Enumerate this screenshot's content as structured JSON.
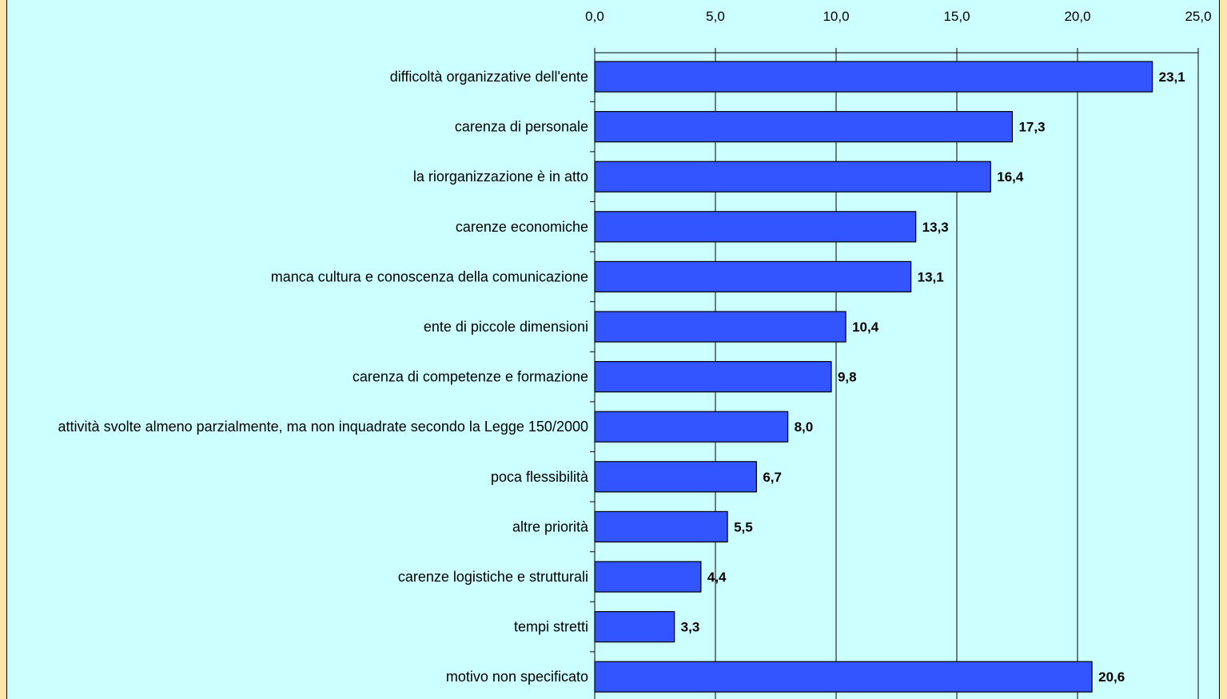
{
  "chart_data": {
    "type": "bar",
    "orientation": "horizontal",
    "title": "",
    "xlabel": "",
    "ylabel": "",
    "xlim": [
      0,
      25
    ],
    "x_ticks": [
      "0,0",
      "5,0",
      "10,0",
      "15,0",
      "20,0",
      "25,0"
    ],
    "x_axis_position": "top",
    "grid": true,
    "legend": "none",
    "categories": [
      "difficoltà organizzative dell'ente",
      "carenza di personale",
      "la riorganizzazione è in atto",
      "carenze economiche",
      "manca cultura e conoscenza della comunicazione",
      "ente di piccole dimensioni",
      "carenza di competenze e formazione",
      "attività svolte almeno parzialmente, ma non inquadrate secondo la Legge 150/2000",
      "poca flessibilità",
      "altre priorità",
      "carenze logistiche e strutturali",
      "tempi stretti",
      "motivo non specificato"
    ],
    "values": [
      23.1,
      17.3,
      16.4,
      13.3,
      13.1,
      10.4,
      9.8,
      8.0,
      6.7,
      5.5,
      4.4,
      3.3,
      20.6
    ],
    "value_labels": [
      "23,1",
      "17,3",
      "16,4",
      "13,3",
      "13,1",
      "10,4",
      "9,8",
      "8,0",
      "6,7",
      "5,5",
      "4,4",
      "3,3",
      "20,6"
    ],
    "colors": {
      "bar": "#3355ff",
      "bar_border": "#000000",
      "background": "#ccffff",
      "page": "#ffe5a8"
    }
  }
}
